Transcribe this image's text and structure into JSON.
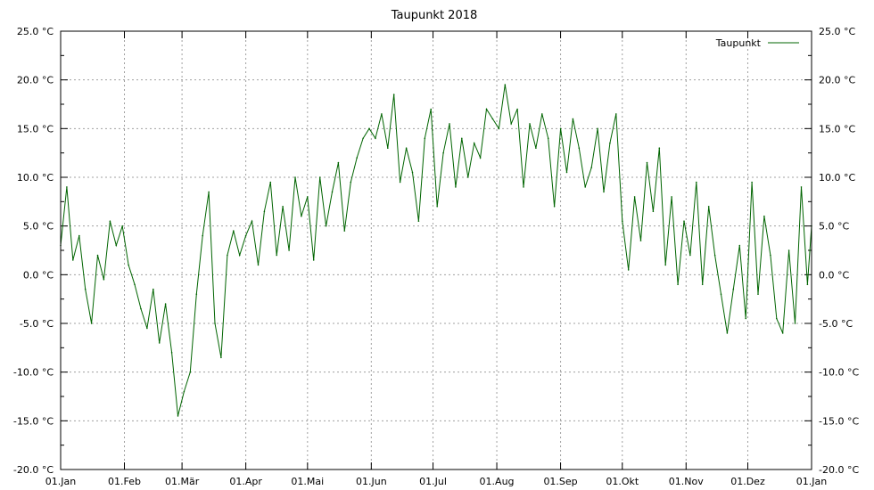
{
  "chart_data": {
    "type": "line",
    "title": "Taupunkt 2018",
    "xlabel": "",
    "ylabel": "",
    "unit": "°C",
    "grid": true,
    "legend_position": "top-right",
    "ylim": [
      -20,
      25
    ],
    "xlim": [
      "2018-01-01",
      "2019-01-01"
    ],
    "y_ticks_left": [
      "25.0 °C",
      "20.0 °C",
      "15.0 °C",
      "10.0 °C",
      "5.0 °C",
      "0.0 °C",
      "-5.0 °C",
      "-10.0 °C",
      "-15.0 °C",
      "-20.0 °C"
    ],
    "y_ticks_right": [
      "25.0 °C",
      "20.0 °C",
      "15.0 °C",
      "10.0 °C",
      "5.0 °C",
      "0.0 °C",
      "-5.0 °C",
      "-10.0 °C",
      "-15.0 °C",
      "-20.0 °C"
    ],
    "y_tick_values": [
      25,
      20,
      15,
      10,
      5,
      0,
      -5,
      -10,
      -15,
      -20
    ],
    "x_ticks": [
      {
        "label": "01.Jan",
        "date": "2018-01-01"
      },
      {
        "label": "01.Feb",
        "date": "2018-02-01"
      },
      {
        "label": "01.Mär",
        "date": "2018-03-01"
      },
      {
        "label": "01.Apr",
        "date": "2018-04-01"
      },
      {
        "label": "01.Mai",
        "date": "2018-05-01"
      },
      {
        "label": "01.Jun",
        "date": "2018-06-01"
      },
      {
        "label": "01.Jul",
        "date": "2018-07-01"
      },
      {
        "label": "01.Aug",
        "date": "2018-08-01"
      },
      {
        "label": "01.Sep",
        "date": "2018-09-01"
      },
      {
        "label": "01.Okt",
        "date": "2018-10-01"
      },
      {
        "label": "01.Nov",
        "date": "2018-11-01"
      },
      {
        "label": "01.Dez",
        "date": "2018-12-01"
      },
      {
        "label": "01.Jan",
        "date": "2019-01-01"
      }
    ],
    "series": [
      {
        "name": "Taupunkt",
        "color": "#006400",
        "x": [
          "2018-01-01",
          "2018-01-04",
          "2018-01-07",
          "2018-01-10",
          "2018-01-13",
          "2018-01-16",
          "2018-01-19",
          "2018-01-22",
          "2018-01-25",
          "2018-01-28",
          "2018-01-31",
          "2018-02-03",
          "2018-02-06",
          "2018-02-09",
          "2018-02-12",
          "2018-02-15",
          "2018-02-18",
          "2018-02-21",
          "2018-02-24",
          "2018-02-27",
          "2018-03-02",
          "2018-03-05",
          "2018-03-08",
          "2018-03-11",
          "2018-03-14",
          "2018-03-17",
          "2018-03-20",
          "2018-03-23",
          "2018-03-26",
          "2018-03-29",
          "2018-04-01",
          "2018-04-04",
          "2018-04-07",
          "2018-04-10",
          "2018-04-13",
          "2018-04-16",
          "2018-04-19",
          "2018-04-22",
          "2018-04-25",
          "2018-04-28",
          "2018-05-01",
          "2018-05-04",
          "2018-05-07",
          "2018-05-10",
          "2018-05-13",
          "2018-05-16",
          "2018-05-19",
          "2018-05-22",
          "2018-05-25",
          "2018-05-28",
          "2018-05-31",
          "2018-06-03",
          "2018-06-06",
          "2018-06-09",
          "2018-06-12",
          "2018-06-15",
          "2018-06-18",
          "2018-06-21",
          "2018-06-24",
          "2018-06-27",
          "2018-06-30",
          "2018-07-03",
          "2018-07-06",
          "2018-07-09",
          "2018-07-12",
          "2018-07-15",
          "2018-07-18",
          "2018-07-21",
          "2018-07-24",
          "2018-07-27",
          "2018-07-30",
          "2018-08-02",
          "2018-08-05",
          "2018-08-08",
          "2018-08-11",
          "2018-08-14",
          "2018-08-17",
          "2018-08-20",
          "2018-08-23",
          "2018-08-26",
          "2018-08-29",
          "2018-09-01",
          "2018-09-04",
          "2018-09-07",
          "2018-09-10",
          "2018-09-13",
          "2018-09-16",
          "2018-09-19",
          "2018-09-22",
          "2018-09-25",
          "2018-09-28",
          "2018-10-01",
          "2018-10-04",
          "2018-10-07",
          "2018-10-10",
          "2018-10-13",
          "2018-10-16",
          "2018-10-19",
          "2018-10-22",
          "2018-10-25",
          "2018-10-28",
          "2018-10-31",
          "2018-11-03",
          "2018-11-06",
          "2018-11-09",
          "2018-11-12",
          "2018-11-15",
          "2018-11-18",
          "2018-11-21",
          "2018-11-24",
          "2018-11-27",
          "2018-11-30",
          "2018-12-03",
          "2018-12-06",
          "2018-12-09",
          "2018-12-12",
          "2018-12-15",
          "2018-12-18",
          "2018-12-21",
          "2018-12-24",
          "2018-12-27",
          "2018-12-30",
          "2019-01-01"
        ],
        "values": [
          3.0,
          9.0,
          1.5,
          4.0,
          -1.5,
          -5.0,
          2.0,
          -0.5,
          5.5,
          3.0,
          5.0,
          1.0,
          -1.0,
          -3.5,
          -5.5,
          -1.5,
          -7.0,
          -3.0,
          -8.0,
          -14.5,
          -12.0,
          -10.0,
          -2.0,
          4.0,
          8.5,
          -5.0,
          -8.5,
          2.0,
          4.5,
          2.0,
          4.0,
          5.5,
          1.0,
          6.5,
          9.5,
          2.0,
          7.0,
          2.5,
          10.0,
          6.0,
          8.0,
          1.5,
          10.0,
          5.0,
          8.5,
          11.5,
          4.5,
          9.5,
          12.0,
          14.0,
          15.0,
          14.0,
          16.5,
          13.0,
          18.5,
          9.5,
          13.0,
          10.5,
          5.5,
          14.0,
          17.0,
          7.0,
          12.5,
          15.5,
          9.0,
          14.0,
          10.0,
          13.5,
          12.0,
          17.0,
          16.0,
          15.0,
          19.5,
          15.5,
          17.0,
          9.0,
          15.5,
          13.0,
          16.5,
          14.0,
          7.0,
          15.0,
          10.5,
          16.0,
          13.0,
          9.0,
          11.0,
          15.0,
          8.5,
          13.5,
          16.5,
          5.5,
          0.5,
          8.0,
          3.5,
          11.5,
          6.5,
          13.0,
          1.0,
          8.0,
          -1.0,
          5.5,
          2.0,
          9.5,
          -1.0,
          7.0,
          2.0,
          -2.0,
          -6.0,
          -1.5,
          3.0,
          -4.5,
          9.5,
          -2.0,
          6.0,
          2.0,
          -4.5,
          -6.0,
          2.5,
          -5.0,
          9.0,
          -1.0,
          5.0
        ]
      }
    ]
  }
}
